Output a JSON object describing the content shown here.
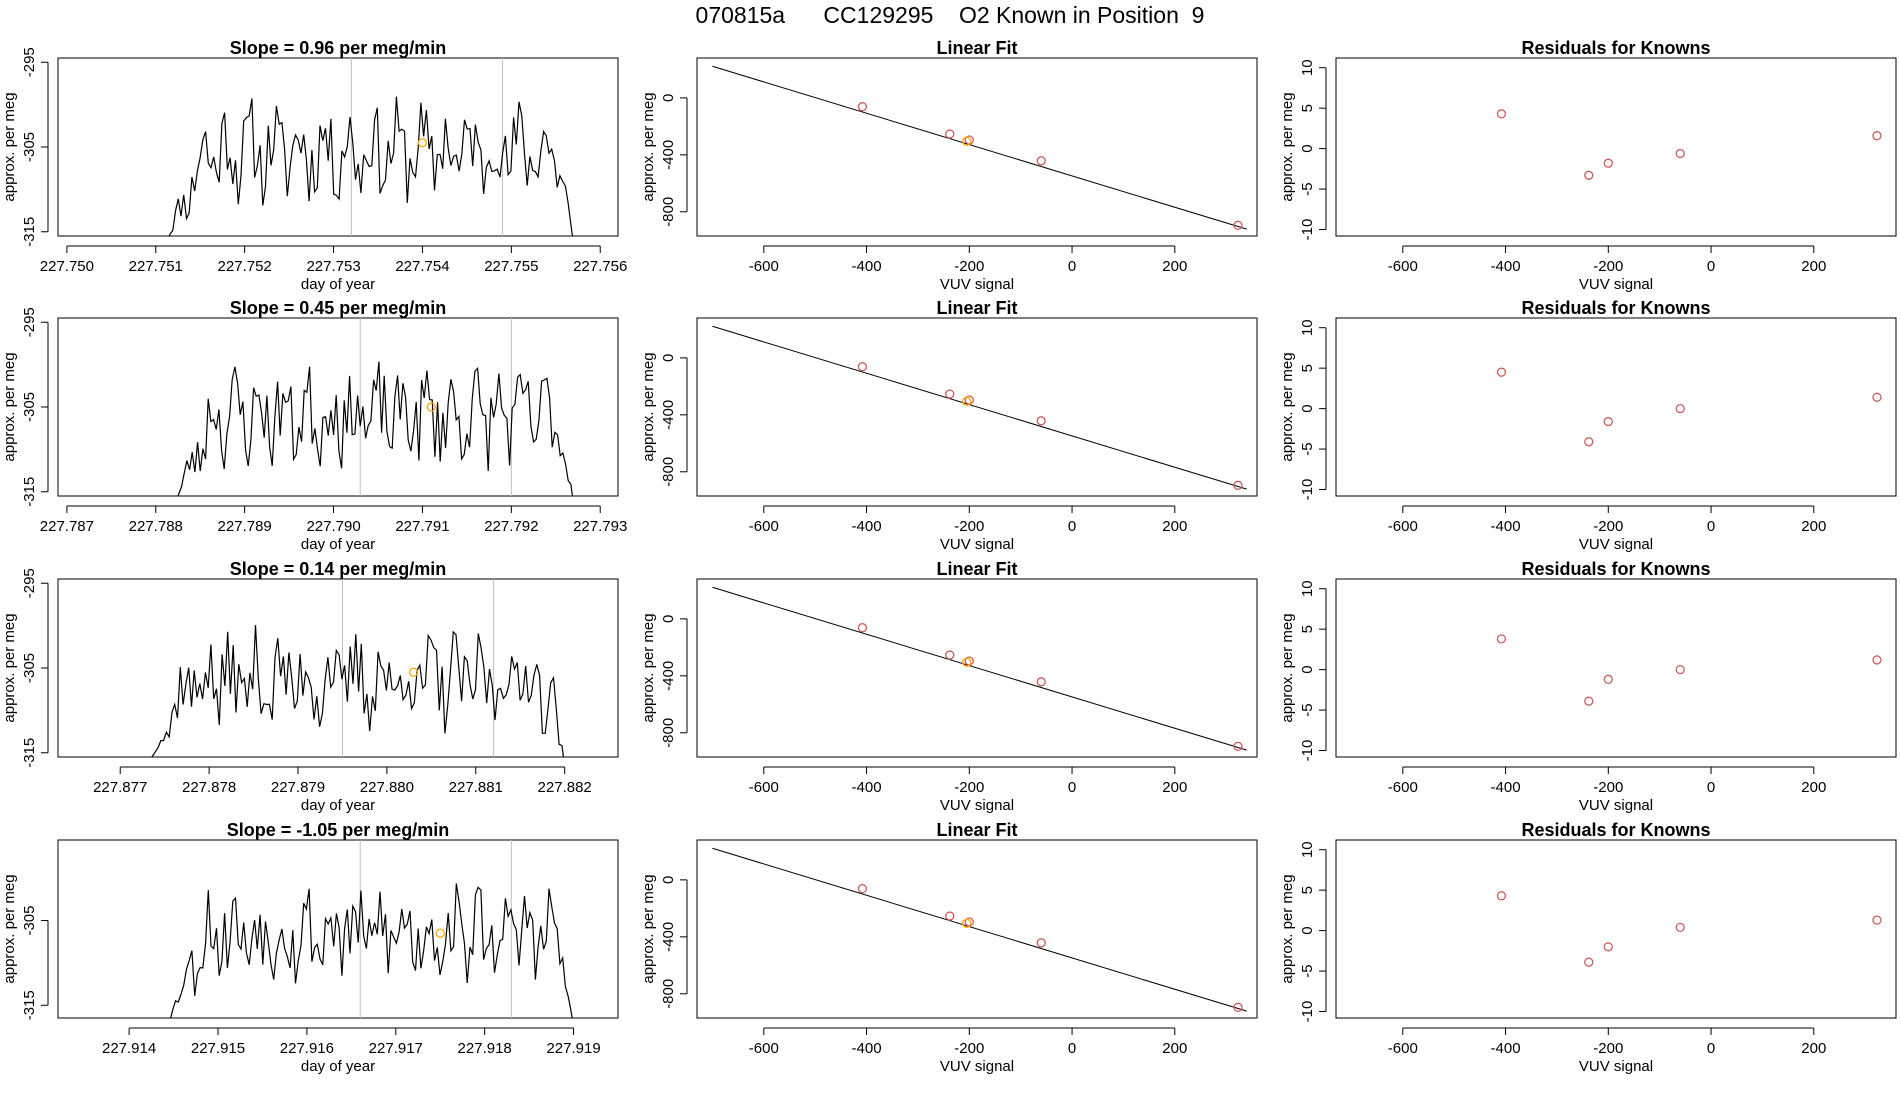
{
  "figure": {
    "title": "070815a      CC129295    O2 Known in Position  9",
    "background": "#ffffff",
    "line_color": "#000000",
    "vline_color": "#bebebe",
    "known_color": "#cd5c5c",
    "sample_color": "#ffa500"
  },
  "chart_data": [
    {
      "type": "line",
      "row": 0,
      "col": 0,
      "title": "Slope =  0.96  per meg/min",
      "xlabel": "day of year",
      "ylabel": "approx. per meg",
      "xlim": [
        227.7499,
        227.7562
      ],
      "ylim": [
        -315.5,
        -294.5
      ],
      "xticks": [
        227.75,
        227.751,
        227.752,
        227.753,
        227.754,
        227.755,
        227.756
      ],
      "xtick_labels": [
        "227.750",
        "227.751",
        "227.752",
        "227.753",
        "227.754",
        "227.755",
        "227.756"
      ],
      "yticks": [
        -295,
        -305,
        -315
      ],
      "ytick_labels": [
        "-295",
        "-305",
        "-315"
      ],
      "trace_x_range": [
        227.7511,
        227.7557
      ],
      "trace_seed": 11,
      "trace_mean": -305.5,
      "vlines": [
        227.7532,
        227.7549
      ],
      "sample_point": {
        "x": 227.754,
        "y": -304.5
      }
    },
    {
      "type": "scatter",
      "row": 0,
      "col": 1,
      "title": "Linear Fit",
      "xlabel": "VUV signal",
      "ylabel": "approx. per meg",
      "xlim": [
        -730,
        360
      ],
      "ylim": [
        -970,
        280
      ],
      "xticks": [
        -600,
        -400,
        -200,
        0,
        200
      ],
      "xtick_labels": [
        "-600",
        "-400",
        "-200",
        "0",
        "200"
      ],
      "yticks": [
        0,
        -400,
        -800
      ],
      "ytick_labels": [
        "0",
        "-400",
        "-800"
      ],
      "fit_line": {
        "x": [
          -700,
          340
        ],
        "y": [
          222,
          -922
        ]
      },
      "known_points": {
        "x": [
          -408,
          -238,
          -200,
          -60,
          323
        ],
        "y": [
          -62,
          -254,
          -296,
          -442,
          -895
        ]
      },
      "sample_point": {
        "x": -205,
        "y": -305
      }
    },
    {
      "type": "scatter",
      "row": 0,
      "col": 2,
      "title": "Residuals for Knowns",
      "xlabel": "VUV signal",
      "ylabel": "approx. per meg",
      "xlim": [
        -730,
        360
      ],
      "ylim": [
        -10.8,
        11.2
      ],
      "xticks": [
        -600,
        -400,
        -200,
        0,
        200
      ],
      "xtick_labels": [
        "-600",
        "-400",
        "-200",
        "0",
        "200"
      ],
      "yticks": [
        10,
        5,
        0,
        -5,
        -10
      ],
      "ytick_labels": [
        "10",
        "5",
        "0",
        "-5",
        "-10"
      ],
      "known_points": {
        "x": [
          -408,
          -238,
          -200,
          -60,
          323
        ],
        "y": [
          4.3,
          -3.3,
          -1.8,
          -0.6,
          1.6
        ]
      }
    },
    {
      "type": "line",
      "row": 1,
      "col": 0,
      "title": "Slope =  0.45  per meg/min",
      "xlabel": "day of year",
      "ylabel": "approx. per meg",
      "xlim": [
        227.7869,
        227.7932
      ],
      "ylim": [
        -315.5,
        -294.5
      ],
      "xticks": [
        227.787,
        227.788,
        227.789,
        227.79,
        227.791,
        227.792,
        227.793
      ],
      "xtick_labels": [
        "227.787",
        "227.788",
        "227.789",
        "227.790",
        "227.791",
        "227.792",
        "227.793"
      ],
      "yticks": [
        -295,
        -305,
        -315
      ],
      "ytick_labels": [
        "-295",
        "-305",
        "-315"
      ],
      "trace_x_range": [
        227.7882,
        227.7927
      ],
      "trace_seed": 23,
      "trace_mean": -306.0,
      "vlines": [
        227.7903,
        227.792
      ],
      "sample_point": {
        "x": 227.7911,
        "y": -305.0
      }
    },
    {
      "type": "scatter",
      "row": 1,
      "col": 1,
      "title": "Linear Fit",
      "xlabel": "VUV signal",
      "ylabel": "approx. per meg",
      "xlim": [
        -730,
        360
      ],
      "ylim": [
        -970,
        280
      ],
      "xticks": [
        -600,
        -400,
        -200,
        0,
        200
      ],
      "xtick_labels": [
        "-600",
        "-400",
        "-200",
        "0",
        "200"
      ],
      "yticks": [
        0,
        -400,
        -800
      ],
      "ytick_labels": [
        "0",
        "-400",
        "-800"
      ],
      "fit_line": {
        "x": [
          -700,
          340
        ],
        "y": [
          222,
          -922
        ]
      },
      "known_points": {
        "x": [
          -408,
          -238,
          -200,
          -60,
          323
        ],
        "y": [
          -62,
          -254,
          -296,
          -442,
          -895
        ]
      },
      "sample_point": {
        "x": -205,
        "y": -305
      }
    },
    {
      "type": "scatter",
      "row": 1,
      "col": 2,
      "title": "Residuals for Knowns",
      "xlabel": "VUV signal",
      "ylabel": "approx. per meg",
      "xlim": [
        -730,
        360
      ],
      "ylim": [
        -10.8,
        11.2
      ],
      "xticks": [
        -600,
        -400,
        -200,
        0,
        200
      ],
      "xtick_labels": [
        "-600",
        "-400",
        "-200",
        "0",
        "200"
      ],
      "yticks": [
        10,
        5,
        0,
        -5,
        -10
      ],
      "ytick_labels": [
        "10",
        "5",
        "0",
        "-5",
        "-10"
      ],
      "known_points": {
        "x": [
          -408,
          -238,
          -200,
          -60,
          323
        ],
        "y": [
          4.5,
          -4.1,
          -1.6,
          0.0,
          1.4
        ]
      }
    },
    {
      "type": "line",
      "row": 2,
      "col": 0,
      "title": "Slope =  0.14  per meg/min",
      "xlabel": "day of year",
      "ylabel": "approx. per meg",
      "xlim": [
        227.8763,
        227.8826
      ],
      "ylim": [
        -315.5,
        -294.5
      ],
      "xticks": [
        227.877,
        227.878,
        227.879,
        227.88,
        227.881,
        227.882
      ],
      "xtick_labels": [
        "227.877",
        "227.878",
        "227.879",
        "227.880",
        "227.881",
        "227.882"
      ],
      "yticks": [
        -295,
        -305,
        -315
      ],
      "ytick_labels": [
        "-295",
        "-305",
        "-315"
      ],
      "trace_x_range": [
        227.8773,
        227.882
      ],
      "trace_seed": 37,
      "trace_mean": -306.5,
      "vlines": [
        227.8795,
        227.8812
      ],
      "sample_point": {
        "x": 227.8803,
        "y": -305.5
      }
    },
    {
      "type": "scatter",
      "row": 2,
      "col": 1,
      "title": "Linear Fit",
      "xlabel": "VUV signal",
      "ylabel": "approx. per meg",
      "xlim": [
        -730,
        360
      ],
      "ylim": [
        -970,
        280
      ],
      "xticks": [
        -600,
        -400,
        -200,
        0,
        200
      ],
      "xtick_labels": [
        "-600",
        "-400",
        "-200",
        "0",
        "200"
      ],
      "yticks": [
        0,
        -400,
        -800
      ],
      "ytick_labels": [
        "0",
        "-400",
        "-800"
      ],
      "fit_line": {
        "x": [
          -700,
          340
        ],
        "y": [
          222,
          -922
        ]
      },
      "known_points": {
        "x": [
          -408,
          -238,
          -200,
          -60,
          323
        ],
        "y": [
          -62,
          -254,
          -296,
          -442,
          -895
        ]
      },
      "sample_point": {
        "x": -205,
        "y": -305
      }
    },
    {
      "type": "scatter",
      "row": 2,
      "col": 2,
      "title": "Residuals for Knowns",
      "xlabel": "VUV signal",
      "ylabel": "approx. per meg",
      "xlim": [
        -730,
        360
      ],
      "ylim": [
        -10.8,
        11.2
      ],
      "xticks": [
        -600,
        -400,
        -200,
        0,
        200
      ],
      "xtick_labels": [
        "-600",
        "-400",
        "-200",
        "0",
        "200"
      ],
      "yticks": [
        10,
        5,
        0,
        -5,
        -10
      ],
      "ytick_labels": [
        "10",
        "5",
        "0",
        "-5",
        "-10"
      ],
      "known_points": {
        "x": [
          -408,
          -238,
          -200,
          -60,
          323
        ],
        "y": [
          3.8,
          -3.9,
          -1.2,
          0.0,
          1.2
        ]
      }
    },
    {
      "type": "line",
      "row": 3,
      "col": 0,
      "title": "Slope =  -1.05  per meg/min",
      "xlabel": "day of year",
      "ylabel": "approx. per meg",
      "xlim": [
        227.9132,
        227.9195
      ],
      "ylim": [
        -316.5,
        -295.5
      ],
      "xticks": [
        227.914,
        227.915,
        227.916,
        227.917,
        227.918,
        227.919
      ],
      "xtick_labels": [
        "227.914",
        "227.915",
        "227.916",
        "227.917",
        "227.918",
        "227.919"
      ],
      "yticks": [
        -305,
        -315
      ],
      "ytick_labels": [
        "-305",
        "-315"
      ],
      "trace_x_range": [
        227.9144,
        227.919
      ],
      "trace_seed": 53,
      "trace_mean": -306.5,
      "vlines": [
        227.9166,
        227.9183
      ],
      "sample_point": {
        "x": 227.9175,
        "y": -306.5
      }
    },
    {
      "type": "scatter",
      "row": 3,
      "col": 1,
      "title": "Linear Fit",
      "xlabel": "VUV signal",
      "ylabel": "approx. per meg",
      "xlim": [
        -730,
        360
      ],
      "ylim": [
        -970,
        280
      ],
      "xticks": [
        -600,
        -400,
        -200,
        0,
        200
      ],
      "xtick_labels": [
        "-600",
        "-400",
        "-200",
        "0",
        "200"
      ],
      "yticks": [
        0,
        -400,
        -800
      ],
      "ytick_labels": [
        "0",
        "-400",
        "-800"
      ],
      "fit_line": {
        "x": [
          -700,
          340
        ],
        "y": [
          222,
          -922
        ]
      },
      "known_points": {
        "x": [
          -408,
          -238,
          -200,
          -60,
          323
        ],
        "y": [
          -62,
          -254,
          -296,
          -442,
          -895
        ]
      },
      "sample_point": {
        "x": -205,
        "y": -305
      }
    },
    {
      "type": "scatter",
      "row": 3,
      "col": 2,
      "title": "Residuals for Knowns",
      "xlabel": "VUV signal",
      "ylabel": "approx. per meg",
      "xlim": [
        -730,
        360
      ],
      "ylim": [
        -10.8,
        11.2
      ],
      "xticks": [
        -600,
        -400,
        -200,
        0,
        200
      ],
      "xtick_labels": [
        "-600",
        "-400",
        "-200",
        "0",
        "200"
      ],
      "yticks": [
        10,
        5,
        0,
        -5,
        -10
      ],
      "ytick_labels": [
        "10",
        "5",
        "0",
        "-5",
        "-10"
      ],
      "known_points": {
        "x": [
          -408,
          -238,
          -200,
          -60,
          323
        ],
        "y": [
          4.3,
          -3.9,
          -2.0,
          0.4,
          1.3
        ]
      }
    }
  ]
}
